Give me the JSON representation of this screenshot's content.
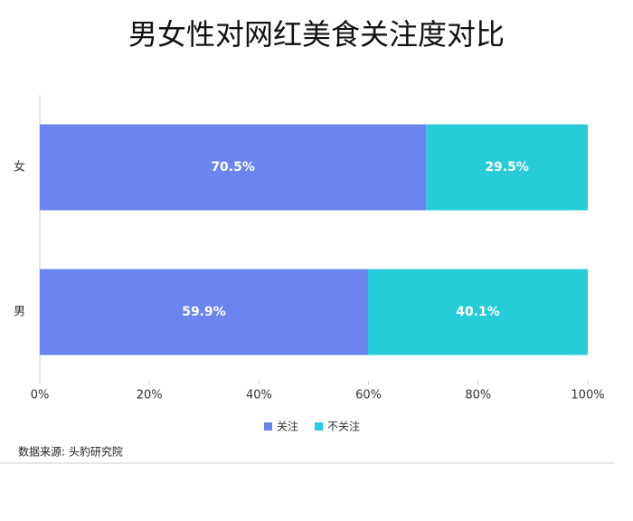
{
  "chart_data": {
    "type": "stacked-bar-horizontal",
    "title": "男女性对网红美食关注度对比",
    "categories": [
      "女",
      "男"
    ],
    "series": [
      {
        "name": "关注",
        "color": "#6b84f0",
        "values": [
          70.5,
          59.9
        ],
        "value_labels": [
          "70.5%",
          "59.9%"
        ]
      },
      {
        "name": "不关注",
        "color": "#26ccd8",
        "values": [
          29.5,
          40.1
        ],
        "value_labels": [
          "29.5%",
          "40.1%"
        ]
      }
    ],
    "xlim": [
      0,
      100
    ],
    "xticks": [
      {
        "value": 0,
        "label": "0%"
      },
      {
        "value": 20,
        "label": "20%"
      },
      {
        "value": 40,
        "label": "40%"
      },
      {
        "value": 60,
        "label": "60%"
      },
      {
        "value": 80,
        "label": "80%"
      },
      {
        "value": 100,
        "label": "100%"
      }
    ],
    "legend": "bottom",
    "source": "数据来源: 头豹研究院"
  }
}
